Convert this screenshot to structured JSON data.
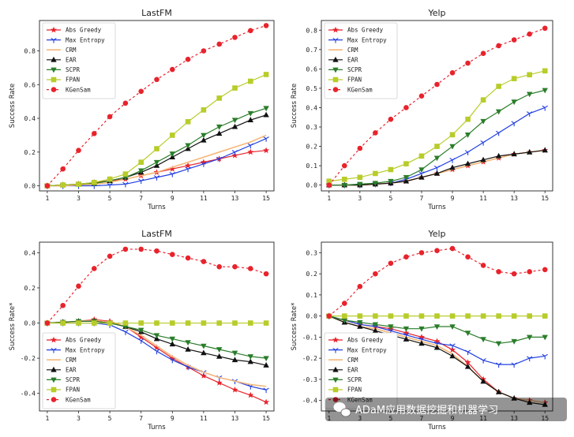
{
  "chart_data": [
    {
      "type": "line",
      "title": "LastFM",
      "xlabel": "Turns",
      "ylabel": "Success Rate",
      "xlim": [
        0.5,
        15.5
      ],
      "ylim": [
        -0.03,
        0.98
      ],
      "xticks": [
        1,
        3,
        5,
        7,
        9,
        11,
        13,
        15
      ],
      "xtick_labels": [
        "1",
        "3",
        "5",
        "7",
        "9",
        "11",
        "13",
        "15"
      ],
      "yticks": [
        0,
        0.2,
        0.4,
        0.6,
        0.8
      ],
      "ytick_labels": [
        "0.0",
        "0.2",
        "0.4",
        "0.6",
        "0.8"
      ],
      "legend_position": "upper-left",
      "x": [
        1,
        2,
        3,
        4,
        5,
        6,
        7,
        8,
        9,
        10,
        11,
        12,
        13,
        14,
        15
      ],
      "series": [
        {
          "name": "Abs Greedy",
          "values": [
            0,
            0.005,
            0.01,
            0.02,
            0.03,
            0.04,
            0.06,
            0.08,
            0.1,
            0.12,
            0.14,
            0.16,
            0.18,
            0.2,
            0.21
          ]
        },
        {
          "name": "Max Entropy",
          "values": [
            0,
            0,
            0,
            0,
            0.005,
            0.01,
            0.03,
            0.05,
            0.07,
            0.1,
            0.13,
            0.16,
            0.2,
            0.24,
            0.28
          ]
        },
        {
          "name": "CRM",
          "values": [
            0,
            0,
            0.005,
            0.01,
            0.02,
            0.04,
            0.06,
            0.08,
            0.11,
            0.14,
            0.17,
            0.2,
            0.23,
            0.26,
            0.3
          ]
        },
        {
          "name": "EAR",
          "values": [
            0,
            0.005,
            0.01,
            0.015,
            0.03,
            0.05,
            0.08,
            0.12,
            0.17,
            0.22,
            0.27,
            0.31,
            0.35,
            0.39,
            0.42
          ]
        },
        {
          "name": "SCPR",
          "values": [
            0,
            0.005,
            0.01,
            0.015,
            0.03,
            0.05,
            0.09,
            0.14,
            0.19,
            0.24,
            0.3,
            0.35,
            0.39,
            0.43,
            0.46
          ]
        },
        {
          "name": "FPAN",
          "values": [
            0,
            0.005,
            0.01,
            0.02,
            0.04,
            0.07,
            0.14,
            0.22,
            0.3,
            0.38,
            0.45,
            0.52,
            0.58,
            0.62,
            0.66
          ]
        },
        {
          "name": "KGenSam",
          "values": [
            0,
            0.1,
            0.21,
            0.31,
            0.41,
            0.49,
            0.56,
            0.63,
            0.69,
            0.75,
            0.8,
            0.84,
            0.88,
            0.92,
            0.95
          ]
        }
      ]
    },
    {
      "type": "line",
      "title": "Yelp",
      "xlabel": "Turns",
      "ylabel": "Success Rate",
      "xlim": [
        0.5,
        15.5
      ],
      "ylim": [
        -0.03,
        0.85
      ],
      "xticks": [
        1,
        3,
        5,
        7,
        9,
        11,
        13,
        15
      ],
      "xtick_labels": [
        "1",
        "3",
        "5",
        "7",
        "9",
        "11",
        "13",
        "15"
      ],
      "yticks": [
        0,
        0.1,
        0.2,
        0.3,
        0.4,
        0.5,
        0.6,
        0.7,
        0.8
      ],
      "ytick_labels": [
        "0.0",
        "0.1",
        "0.2",
        "0.3",
        "0.4",
        "0.5",
        "0.6",
        "0.7",
        "0.8"
      ],
      "legend_position": "upper-left",
      "x": [
        1,
        2,
        3,
        4,
        5,
        6,
        7,
        8,
        9,
        10,
        11,
        12,
        13,
        14,
        15
      ],
      "series": [
        {
          "name": "Abs Greedy",
          "values": [
            0,
            0,
            0,
            0.005,
            0.01,
            0.02,
            0.04,
            0.06,
            0.08,
            0.1,
            0.12,
            0.14,
            0.16,
            0.17,
            0.18
          ]
        },
        {
          "name": "Max Entropy",
          "values": [
            0,
            0,
            0,
            0.005,
            0.01,
            0.03,
            0.06,
            0.09,
            0.13,
            0.17,
            0.22,
            0.27,
            0.32,
            0.37,
            0.4
          ]
        },
        {
          "name": "CRM",
          "values": [
            0,
            0,
            0,
            0.005,
            0.01,
            0.02,
            0.04,
            0.06,
            0.08,
            0.1,
            0.12,
            0.14,
            0.16,
            0.17,
            0.18
          ]
        },
        {
          "name": "EAR",
          "values": [
            0,
            0,
            0,
            0.005,
            0.01,
            0.02,
            0.04,
            0.06,
            0.09,
            0.11,
            0.13,
            0.15,
            0.16,
            0.17,
            0.18
          ]
        },
        {
          "name": "SCPR",
          "values": [
            0,
            0,
            0.005,
            0.01,
            0.02,
            0.04,
            0.08,
            0.14,
            0.2,
            0.26,
            0.33,
            0.38,
            0.43,
            0.47,
            0.49
          ]
        },
        {
          "name": "FPAN",
          "values": [
            0.02,
            0.03,
            0.04,
            0.06,
            0.08,
            0.11,
            0.15,
            0.2,
            0.26,
            0.34,
            0.44,
            0.51,
            0.55,
            0.57,
            0.59
          ]
        },
        {
          "name": "KGenSam",
          "values": [
            0,
            0.1,
            0.19,
            0.27,
            0.34,
            0.4,
            0.46,
            0.52,
            0.58,
            0.63,
            0.68,
            0.72,
            0.75,
            0.78,
            0.81
          ]
        }
      ]
    },
    {
      "type": "line",
      "title": "LastFM",
      "xlabel": "Turns",
      "ylabel": "Success Rate*",
      "xlim": [
        0.5,
        15.5
      ],
      "ylim": [
        -0.5,
        0.46
      ],
      "xticks": [
        1,
        3,
        5,
        7,
        9,
        11,
        13,
        15
      ],
      "xtick_labels": [
        "1",
        "3",
        "5",
        "7",
        "9",
        "11",
        "13",
        "15"
      ],
      "yticks": [
        -0.4,
        -0.2,
        0,
        0.2,
        0.4
      ],
      "ytick_labels": [
        "-0.4",
        "-0.2",
        "0.0",
        "0.2",
        "0.4"
      ],
      "legend_position": "lower-left",
      "x": [
        1,
        2,
        3,
        4,
        5,
        6,
        7,
        8,
        9,
        10,
        11,
        12,
        13,
        14,
        15
      ],
      "series": [
        {
          "name": "Abs Greedy",
          "values": [
            0,
            0.005,
            0.01,
            0.02,
            0.01,
            -0.02,
            -0.08,
            -0.14,
            -0.2,
            -0.25,
            -0.3,
            -0.34,
            -0.38,
            -0.41,
            -0.45
          ]
        },
        {
          "name": "Max Entropy",
          "values": [
            0,
            0,
            0,
            0,
            -0.01,
            -0.05,
            -0.1,
            -0.16,
            -0.21,
            -0.25,
            -0.28,
            -0.31,
            -0.33,
            -0.36,
            -0.38
          ]
        },
        {
          "name": "CRM",
          "values": [
            0,
            0.005,
            0.01,
            0.015,
            0.005,
            -0.02,
            -0.07,
            -0.13,
            -0.19,
            -0.24,
            -0.28,
            -0.31,
            -0.33,
            -0.35,
            -0.36
          ]
        },
        {
          "name": "EAR",
          "values": [
            0,
            0.005,
            0.01,
            0.01,
            0,
            -0.02,
            -0.05,
            -0.09,
            -0.12,
            -0.15,
            -0.17,
            -0.19,
            -0.21,
            -0.22,
            -0.24
          ]
        },
        {
          "name": "SCPR",
          "values": [
            0,
            0.005,
            0.01,
            0.01,
            0,
            -0.02,
            -0.04,
            -0.07,
            -0.09,
            -0.11,
            -0.13,
            -0.15,
            -0.17,
            -0.19,
            -0.2
          ]
        },
        {
          "name": "FPAN",
          "values": [
            0,
            0,
            0,
            0,
            0,
            0,
            0,
            0,
            0,
            0,
            0,
            0,
            0,
            0,
            0
          ]
        },
        {
          "name": "KGenSam",
          "values": [
            0,
            0.1,
            0.21,
            0.31,
            0.38,
            0.42,
            0.42,
            0.41,
            0.39,
            0.37,
            0.35,
            0.32,
            0.32,
            0.31,
            0.28
          ]
        }
      ]
    },
    {
      "type": "line",
      "title": "Yelp",
      "xlabel": "Turns",
      "ylabel": "Success Rate*",
      "xlim": [
        0.5,
        15.5
      ],
      "ylim": [
        -0.45,
        0.35
      ],
      "xticks": [
        1,
        3,
        5,
        7,
        9,
        11,
        13,
        15
      ],
      "xtick_labels": [
        "1",
        "3",
        "5",
        "7",
        "9",
        "11",
        "13",
        "15"
      ],
      "yticks": [
        -0.4,
        -0.3,
        -0.2,
        -0.1,
        0,
        0.1,
        0.2,
        0.3
      ],
      "ytick_labels": [
        "-0.4",
        "-0.3",
        "-0.2",
        "-0.1",
        "0.0",
        "0.1",
        "0.2",
        "0.3"
      ],
      "legend_position": "lower-left",
      "x": [
        1,
        2,
        3,
        4,
        5,
        6,
        7,
        8,
        9,
        10,
        11,
        12,
        13,
        14,
        15
      ],
      "series": [
        {
          "name": "Abs Greedy",
          "values": [
            0,
            -0.02,
            -0.04,
            -0.05,
            -0.06,
            -0.08,
            -0.1,
            -0.12,
            -0.16,
            -0.22,
            -0.3,
            -0.36,
            -0.39,
            -0.4,
            -0.41
          ]
        },
        {
          "name": "Max Entropy",
          "values": [
            0,
            -0.02,
            -0.04,
            -0.05,
            -0.07,
            -0.09,
            -0.11,
            -0.13,
            -0.14,
            -0.17,
            -0.21,
            -0.23,
            -0.23,
            -0.2,
            -0.19
          ]
        },
        {
          "name": "CRM",
          "values": [
            0,
            -0.03,
            -0.05,
            -0.06,
            -0.08,
            -0.1,
            -0.12,
            -0.14,
            -0.18,
            -0.24,
            -0.31,
            -0.36,
            -0.39,
            -0.4,
            -0.41
          ]
        },
        {
          "name": "EAR",
          "values": [
            0,
            -0.03,
            -0.05,
            -0.07,
            -0.09,
            -0.11,
            -0.13,
            -0.15,
            -0.19,
            -0.24,
            -0.31,
            -0.36,
            -0.39,
            -0.41,
            -0.42
          ]
        },
        {
          "name": "SCPR",
          "values": [
            0,
            -0.02,
            -0.03,
            -0.04,
            -0.05,
            -0.06,
            -0.06,
            -0.05,
            -0.05,
            -0.08,
            -0.11,
            -0.13,
            -0.12,
            -0.1,
            -0.1
          ]
        },
        {
          "name": "FPAN",
          "values": [
            0,
            0,
            0,
            0,
            0,
            0,
            0,
            0,
            0,
            0,
            0,
            0,
            0,
            0,
            0
          ]
        },
        {
          "name": "KGenSam",
          "values": [
            0,
            0.06,
            0.14,
            0.2,
            0.25,
            0.28,
            0.3,
            0.31,
            0.32,
            0.28,
            0.24,
            0.21,
            0.2,
            0.21,
            0.22
          ]
        }
      ]
    }
  ],
  "series_styles": [
    {
      "name": "Abs Greedy",
      "color": "#e8232c",
      "marker": "star"
    },
    {
      "name": "Max Entropy",
      "color": "#2240e0",
      "marker": "tri-down-thin"
    },
    {
      "name": "CRM",
      "color": "#f5b87a",
      "marker": "none"
    },
    {
      "name": "EAR",
      "color": "#111111",
      "marker": "triangle-up"
    },
    {
      "name": "SCPR",
      "color": "#2a7d2a",
      "marker": "triangle-down"
    },
    {
      "name": "FPAN",
      "color": "#b8cc2a",
      "marker": "square"
    },
    {
      "name": "KGenSam",
      "color": "#e8232c",
      "marker": "circle",
      "dashed": true
    }
  ],
  "watermark": {
    "text": "ADaM应用数据挖掘和机器学习",
    "icon": "wechat-icon"
  }
}
